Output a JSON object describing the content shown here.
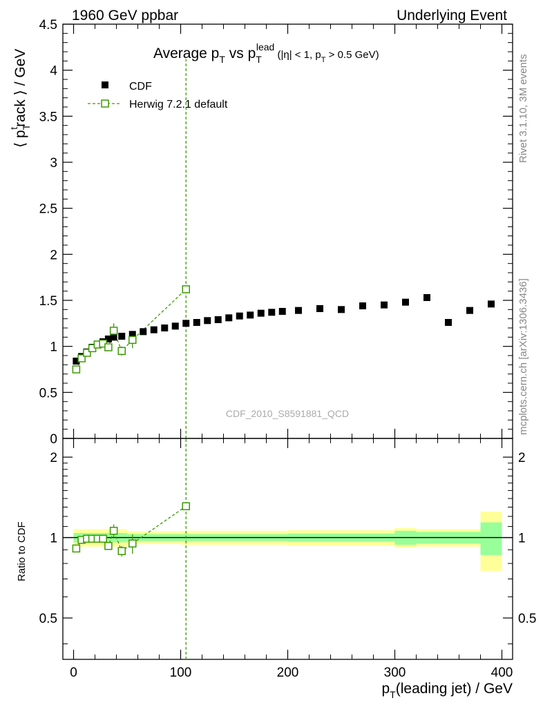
{
  "header": {
    "left": "1960 GeV ppbar",
    "right": "Underlying Event"
  },
  "side_labels": {
    "rivet": "Rivet 3.1.10,  3M events",
    "mcplots": "mcplots.cern.ch [arXiv:1306.3436]"
  },
  "analysis_id": "CDF_2010_S8591881_QCD",
  "colors": {
    "data": "#000000",
    "mc": "#3a9a00",
    "band_outer": "#ffff99",
    "band_inner": "#99ff99"
  },
  "chart_data": [
    {
      "type": "scatter",
      "title": {
        "main": "Average p",
        "sub1": "T",
        "mid": " vs p",
        "sub2": "T",
        "sup": "lead",
        "tail": " (|η| < 1, p",
        "sub3": "T",
        "tail2": " > 0.5 GeV)"
      },
      "ylabel": {
        "pre": "⟨ p",
        "sub": "T",
        "sup": "t",
        "post": "rack ⟩ / GeV"
      },
      "xlim": [
        -10,
        410
      ],
      "ylim": [
        0,
        4.5
      ],
      "yticks": [
        0,
        0.5,
        1,
        1.5,
        2,
        2.5,
        3,
        3.5,
        4,
        4.5
      ],
      "ytick_labels": [
        "0",
        "0.5",
        "1",
        "1.5",
        "2",
        "2.5",
        "3",
        "3.5",
        "4",
        "4.5"
      ],
      "legend_position": "top-left",
      "series": [
        {
          "name": "CDF",
          "marker": "filled-square",
          "x": [
            2.5,
            7.5,
            12.5,
            17.5,
            22.5,
            27.5,
            32.5,
            37.5,
            45,
            55,
            65,
            75,
            85,
            95,
            105,
            115,
            125,
            135,
            145,
            155,
            165,
            175,
            185,
            195,
            210,
            230,
            250,
            270,
            290,
            310,
            330,
            350,
            370,
            390
          ],
          "y": [
            0.84,
            0.89,
            0.94,
            0.99,
            1.02,
            1.05,
            1.08,
            1.1,
            1.11,
            1.13,
            1.16,
            1.18,
            1.2,
            1.22,
            1.25,
            1.26,
            1.28,
            1.29,
            1.31,
            1.33,
            1.34,
            1.36,
            1.37,
            1.38,
            1.39,
            1.41,
            1.4,
            1.44,
            1.45,
            1.48,
            1.53,
            1.26,
            1.39,
            1.46
          ]
        },
        {
          "name": "Herwig 7.2.1 default",
          "marker": "open-square",
          "line": "dashed",
          "x": [
            2.5,
            7.5,
            12.5,
            17.5,
            22.5,
            27.5,
            32.5,
            37.5,
            45,
            55,
            105
          ],
          "y": [
            0.75,
            0.87,
            0.93,
            0.98,
            1.02,
            1.03,
            0.99,
            1.17,
            0.95,
            1.07,
            1.62
          ],
          "yerr": [
            0.02,
            0.02,
            0.02,
            0.02,
            0.02,
            0.03,
            0.04,
            0.08,
            0.05,
            0.09,
            2.5
          ]
        }
      ]
    },
    {
      "type": "scatter",
      "ylabel": "Ratio to CDF",
      "xlabel": {
        "pre": "p",
        "sub": "T",
        "post": "(leading jet) / GeV"
      },
      "xlim": [
        -10,
        410
      ],
      "ylim": [
        0.35,
        2.35
      ],
      "xticks": [
        0,
        100,
        200,
        300,
        400
      ],
      "xtick_labels": [
        "0",
        "100",
        "200",
        "300",
        "400"
      ],
      "yticks": [
        0.5,
        1,
        2
      ],
      "ytick_labels": [
        "0.5",
        "1",
        "2"
      ],
      "bands": {
        "edges": [
          0,
          50,
          100,
          150,
          200,
          250,
          300,
          320,
          350,
          380,
          400
        ],
        "outer": [
          0.075,
          0.055,
          0.06,
          0.06,
          0.065,
          0.065,
          0.085,
          0.075,
          0.075,
          0.25,
          0.25
        ],
        "inner": [
          0.04,
          0.03,
          0.03,
          0.03,
          0.035,
          0.035,
          0.06,
          0.05,
          0.05,
          0.14,
          0.14
        ]
      },
      "series": [
        {
          "name": "Herwig 7.2.1 default",
          "x": [
            2.5,
            7.5,
            12.5,
            17.5,
            22.5,
            27.5,
            32.5,
            37.5,
            45,
            55,
            105
          ],
          "y": [
            0.91,
            0.98,
            0.99,
            0.99,
            0.99,
            0.99,
            0.93,
            1.06,
            0.89,
            0.95,
            1.31
          ],
          "yerr": [
            0.02,
            0.01,
            0.01,
            0.01,
            0.01,
            0.02,
            0.03,
            0.06,
            0.04,
            0.08,
            3.0
          ]
        }
      ]
    }
  ]
}
